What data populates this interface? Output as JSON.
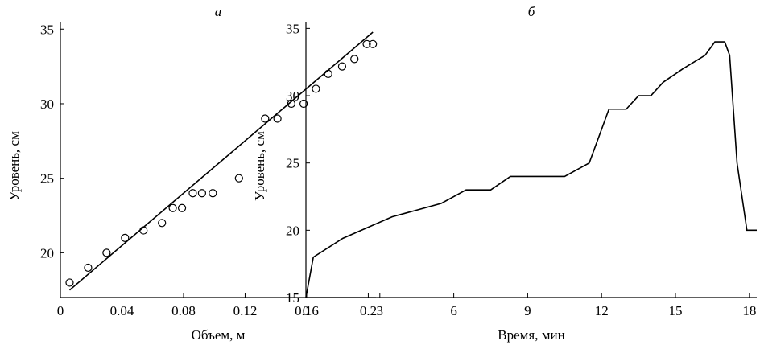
{
  "chart_data": [
    {
      "type": "scatter",
      "title": "а",
      "x_label": "Объем, м",
      "y_label": "Уровень, см",
      "color": "#000000",
      "x": [
        0.006,
        0.018,
        0.03,
        0.042,
        0.054,
        0.066,
        0.073,
        0.079,
        0.086,
        0.092,
        0.099,
        0.116,
        0.133,
        0.141,
        0.15,
        0.158,
        0.166,
        0.174,
        0.183,
        0.191,
        0.199,
        0.203
      ],
      "y": [
        18,
        19,
        20,
        21,
        21.5,
        22,
        23,
        23,
        24,
        24,
        24,
        25,
        29,
        29,
        30,
        30,
        31,
        32,
        32.5,
        33,
        34,
        34
      ],
      "fit": {
        "x": [
          0.006,
          0.203
        ],
        "y": [
          17.5,
          34.8
        ]
      },
      "xlim": [
        0,
        0.205
      ],
      "ylim": [
        17,
        35.5
      ],
      "xticks": [
        0,
        0.04,
        0.08,
        0.12,
        0.16,
        0.2
      ],
      "yticks": [
        20,
        25,
        30,
        35
      ]
    },
    {
      "type": "line",
      "title": "б",
      "x_label": "Время, мин",
      "y_label": "Уровень, см",
      "color": "#000000",
      "x": [
        0,
        0.3,
        1.5,
        3.5,
        5.5,
        6.5,
        7.5,
        8.3,
        10.5,
        11.5,
        12.3,
        13.0,
        13.5,
        14.0,
        14.5,
        15.3,
        16.2,
        16.6,
        17.0,
        17.2,
        17.5,
        17.9,
        18.3
      ],
      "y": [
        15,
        18,
        19.4,
        21,
        22,
        23,
        23,
        24,
        24,
        25,
        29,
        29,
        30,
        30,
        31,
        32,
        33,
        34,
        34,
        33,
        25,
        20,
        20
      ],
      "xlim": [
        0,
        18.3
      ],
      "ylim": [
        15,
        35.5
      ],
      "xticks": [
        0,
        3,
        6,
        9,
        12,
        15,
        18
      ],
      "yticks": [
        15,
        20,
        25,
        30,
        35
      ]
    }
  ]
}
